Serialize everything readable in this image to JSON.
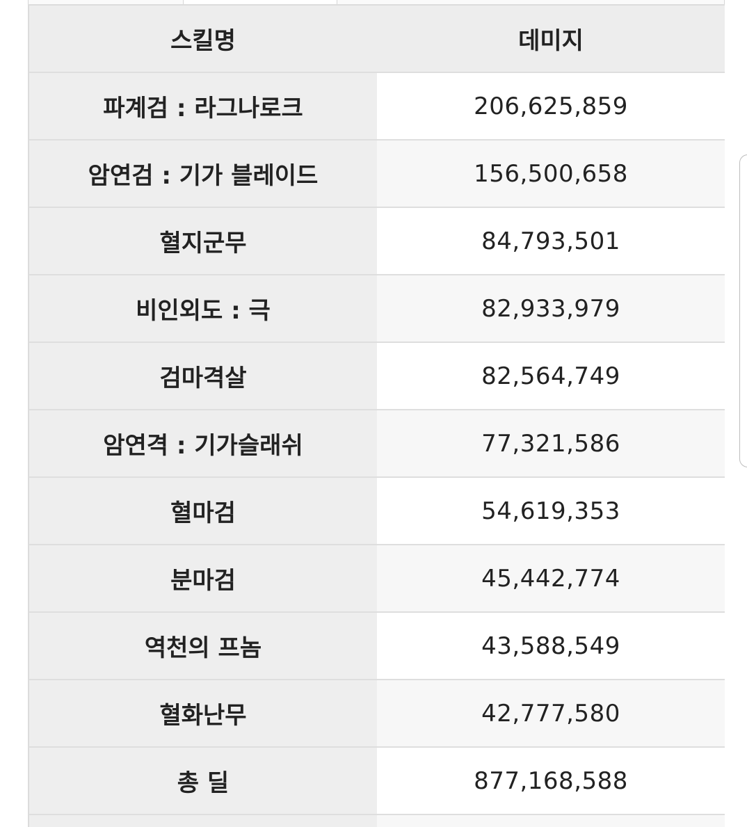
{
  "table": {
    "headers": {
      "skill": "스킬명",
      "damage": "데미지"
    },
    "rows": [
      {
        "skill": "파계검 : 라그나로크",
        "damage": "206,625,859"
      },
      {
        "skill": "암연검 : 기가 블레이드",
        "damage": "156,500,658"
      },
      {
        "skill": "혈지군무",
        "damage": "84,793,501"
      },
      {
        "skill": "비인외도 : 극",
        "damage": "82,933,979"
      },
      {
        "skill": "검마격살",
        "damage": "82,564,749"
      },
      {
        "skill": "암연격 : 기가슬래쉬",
        "damage": "77,321,586"
      },
      {
        "skill": "혈마검",
        "damage": "54,619,353"
      },
      {
        "skill": "분마검",
        "damage": "45,442,774"
      },
      {
        "skill": "역천의 프놈",
        "damage": "43,588,549"
      },
      {
        "skill": "혈화난무",
        "damage": "42,777,580"
      },
      {
        "skill": "총 딜",
        "damage": "877,168,588"
      }
    ]
  }
}
